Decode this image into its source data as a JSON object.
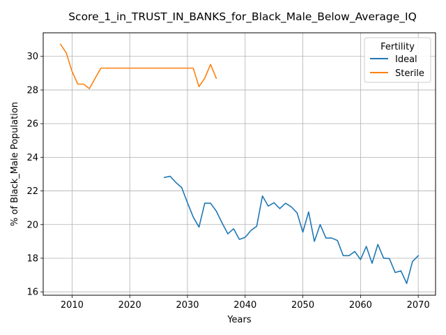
{
  "chart_data": {
    "type": "line",
    "title": "Score_1_in_TRUST_IN_BANKS_for_Black_Male_Below_Average_IQ",
    "xlabel": "Years",
    "ylabel": "% of Black_Male Population",
    "xlim": [
      2005,
      2073
    ],
    "ylim": [
      15.8,
      31.4
    ],
    "x_ticks": [
      2010,
      2020,
      2030,
      2040,
      2050,
      2060,
      2070
    ],
    "y_ticks": [
      16,
      18,
      20,
      22,
      24,
      26,
      28,
      30
    ],
    "grid": true,
    "legend": {
      "title": "Fertility",
      "placement": "top-right"
    },
    "series": [
      {
        "name": "Ideal",
        "color": "#1f77b4",
        "x": [
          2026,
          2027,
          2028,
          2029,
          2030,
          2031,
          2032,
          2033,
          2034,
          2035,
          2036,
          2037,
          2038,
          2039,
          2040,
          2041,
          2042,
          2043,
          2044,
          2045,
          2046,
          2047,
          2048,
          2049,
          2050,
          2051,
          2052,
          2053,
          2054,
          2055,
          2056,
          2057,
          2058,
          2059,
          2060,
          2061,
          2062,
          2063,
          2064,
          2065,
          2066,
          2067,
          2068,
          2069,
          2070
        ],
        "y": [
          22.8,
          22.87,
          22.5,
          22.2,
          21.3,
          20.45,
          19.85,
          21.27,
          21.27,
          20.8,
          20.1,
          19.45,
          19.75,
          19.12,
          19.24,
          19.65,
          19.9,
          21.7,
          21.1,
          21.3,
          20.95,
          21.27,
          21.05,
          20.7,
          19.55,
          20.75,
          19.0,
          20.0,
          19.2,
          19.2,
          19.05,
          18.15,
          18.15,
          18.4,
          17.92,
          18.7,
          17.7,
          18.82,
          18.0,
          17.98,
          17.15,
          17.25,
          16.5,
          17.8,
          18.15
        ]
      },
      {
        "name": "Sterile",
        "color": "#ff7f0e",
        "x": [
          2008,
          2009,
          2010,
          2011,
          2012,
          2013,
          2014,
          2015,
          2016,
          2017,
          2018,
          2019,
          2020,
          2021,
          2022,
          2023,
          2024,
          2025,
          2026,
          2027,
          2028,
          2029,
          2030,
          2031,
          2032,
          2033,
          2034,
          2035
        ],
        "y": [
          30.72,
          30.2,
          29.1,
          28.35,
          28.35,
          28.08,
          28.7,
          29.3,
          29.3,
          29.3,
          29.3,
          29.3,
          29.3,
          29.3,
          29.3,
          29.3,
          29.3,
          29.3,
          29.3,
          29.3,
          29.3,
          29.3,
          29.3,
          29.3,
          28.2,
          28.7,
          29.52,
          28.7
        ]
      }
    ]
  }
}
